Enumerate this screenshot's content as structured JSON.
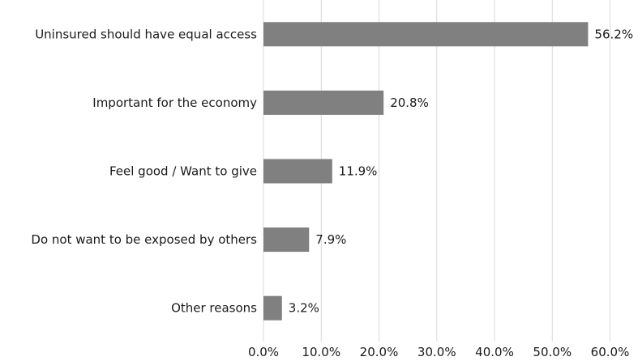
{
  "chart_data": {
    "type": "bar",
    "orientation": "horizontal",
    "categories": [
      "Uninsured should have equal access",
      "Important for the economy",
      "Feel good / Want to give",
      "Do not want to be exposed by others",
      "Other reasons"
    ],
    "values": [
      56.2,
      20.8,
      11.9,
      7.9,
      3.2
    ],
    "data_labels": [
      "56.2%",
      "20.8%",
      "11.9%",
      "7.9%",
      "3.2%"
    ],
    "xlim": [
      0,
      60
    ],
    "x_ticks": [
      "0.0%",
      "10.0%",
      "20.0%",
      "30.0%",
      "40.0%",
      "50.0%",
      "60.0%"
    ],
    "grid": "vertical",
    "legend": "none",
    "colors": {
      "bar": "#808080",
      "grid": "#d9d9d9",
      "text": "#1a1a1a"
    }
  }
}
